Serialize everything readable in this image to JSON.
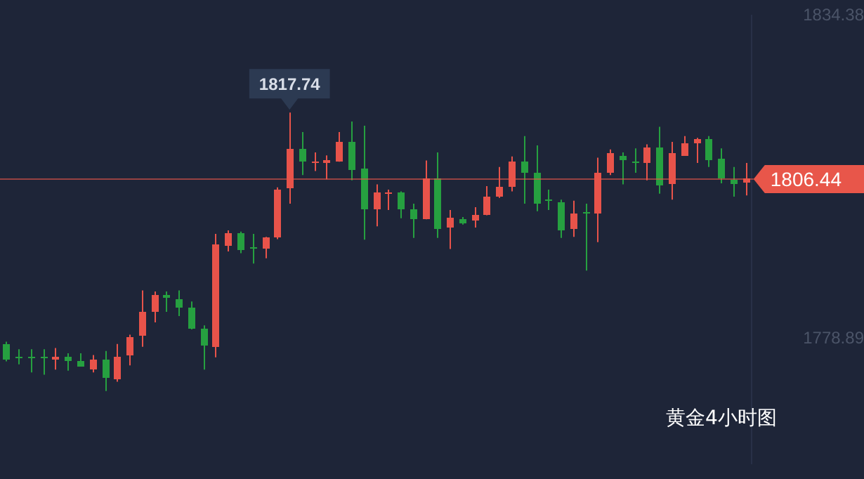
{
  "chart_data": {
    "type": "candlestick",
    "title": "黄金4小时图",
    "categories": [
      null,
      null,
      null,
      null,
      null,
      null,
      null,
      null,
      null,
      null,
      null,
      null,
      null,
      null,
      null,
      null,
      null,
      null,
      null,
      null,
      null,
      null,
      null,
      null,
      null,
      null,
      null,
      null,
      null,
      null,
      null,
      null,
      null,
      null,
      null,
      null,
      null,
      null,
      null,
      null,
      null,
      null,
      null,
      null,
      null,
      null,
      null,
      null,
      null,
      null,
      null,
      null,
      null,
      null,
      null,
      null,
      null,
      null,
      null,
      null,
      null
    ],
    "ohlc": [
      [
        1778.0,
        1778.4,
        1775.0,
        1775.4
      ],
      [
        1775.9,
        1777.1,
        1774.5,
        1775.7
      ],
      [
        1775.7,
        1777.1,
        1773.1,
        1775.6
      ],
      [
        1775.7,
        1777.1,
        1772.7,
        1775.6
      ],
      [
        1775.2,
        1777.3,
        1773.6,
        1775.7
      ],
      [
        1775.7,
        1776.4,
        1773.4,
        1775.0
      ],
      [
        1775.0,
        1776.4,
        1774.1,
        1774.1
      ],
      [
        1773.4,
        1776.1,
        1773.1,
        1775.2
      ],
      [
        1775.2,
        1776.8,
        1769.9,
        1772.0
      ],
      [
        1772.0,
        1778.0,
        1771.5,
        1775.9
      ],
      [
        1775.9,
        1779.6,
        1774.3,
        1779.1
      ],
      [
        1779.4,
        1787.2,
        1777.5,
        1783.5
      ],
      [
        1783.5,
        1787.0,
        1781.7,
        1786.5
      ],
      [
        1786.3,
        1787.0,
        1783.5,
        1785.8
      ],
      [
        1785.8,
        1787.2,
        1782.8,
        1784.4
      ],
      [
        1784.2,
        1785.3,
        1780.5,
        1780.7
      ],
      [
        1780.5,
        1781.2,
        1773.6,
        1777.7
      ],
      [
        1777.5,
        1796.9,
        1775.7,
        1795.0
      ],
      [
        1795.0,
        1797.5,
        1793.9,
        1797.1
      ],
      [
        1797.1,
        1797.3,
        1793.6,
        1794.3
      ],
      [
        1794.6,
        1796.9,
        1791.8,
        1794.5
      ],
      [
        1794.3,
        1796.4,
        1792.7,
        1796.2
      ],
      [
        1796.2,
        1804.9,
        1796.0,
        1804.5
      ],
      [
        1804.7,
        1817.74,
        1802.1,
        1811.4
      ],
      [
        1811.4,
        1814.4,
        1807.0,
        1809.3
      ],
      [
        1809.2,
        1810.9,
        1807.7,
        1809.3
      ],
      [
        1809.1,
        1810.4,
        1806.3,
        1809.5
      ],
      [
        1809.3,
        1814.4,
        1809.3,
        1812.7
      ],
      [
        1812.7,
        1816.2,
        1806.1,
        1807.9
      ],
      [
        1808.1,
        1815.5,
        1795.9,
        1801.2
      ],
      [
        1801.2,
        1805.4,
        1798.2,
        1804.0
      ],
      [
        1803.9,
        1804.5,
        1801.0,
        1804.0
      ],
      [
        1804.0,
        1804.2,
        1799.6,
        1801.2
      ],
      [
        1801.2,
        1802.1,
        1796.2,
        1799.4
      ],
      [
        1799.4,
        1809.5,
        1799.4,
        1806.5
      ],
      [
        1806.5,
        1810.9,
        1796.2,
        1797.8
      ],
      [
        1797.8,
        1801.0,
        1794.3,
        1799.6
      ],
      [
        1799.4,
        1799.8,
        1798.5,
        1798.7
      ],
      [
        1799.2,
        1801.5,
        1798.0,
        1800.1
      ],
      [
        1800.1,
        1805.1,
        1800.1,
        1803.3
      ],
      [
        1803.3,
        1808.4,
        1803.1,
        1805.1
      ],
      [
        1804.9,
        1810.2,
        1804.2,
        1809.3
      ],
      [
        1809.3,
        1813.7,
        1802.1,
        1807.4
      ],
      [
        1807.4,
        1812.1,
        1800.8,
        1802.1
      ],
      [
        1802.7,
        1804.5,
        1801.0,
        1802.6
      ],
      [
        1802.4,
        1802.8,
        1796.2,
        1797.5
      ],
      [
        1797.8,
        1802.6,
        1796.4,
        1800.5
      ],
      [
        1800.6,
        1802.1,
        1790.6,
        1800.5
      ],
      [
        1800.3,
        1810.0,
        1795.5,
        1807.4
      ],
      [
        1807.4,
        1811.4,
        1807.0,
        1810.7
      ],
      [
        1810.2,
        1810.9,
        1805.4,
        1809.5
      ],
      [
        1809.3,
        1811.6,
        1807.4,
        1809.2
      ],
      [
        1809.1,
        1812.3,
        1806.1,
        1811.8
      ],
      [
        1811.8,
        1815.3,
        1803.8,
        1805.4
      ],
      [
        1805.4,
        1812.7,
        1802.8,
        1810.7
      ],
      [
        1810.4,
        1813.7,
        1810.4,
        1812.5
      ],
      [
        1812.5,
        1813.4,
        1809.1,
        1813.2
      ],
      [
        1813.2,
        1813.7,
        1808.4,
        1809.7
      ],
      [
        1809.7,
        1811.6,
        1805.6,
        1806.3
      ],
      [
        1806.3,
        1808.4,
        1803.3,
        1805.6
      ],
      [
        1805.6,
        1809.1,
        1803.5,
        1806.44
      ]
    ],
    "colors": [
      "#26a040",
      "#26a040",
      "#26a040",
      "#26a040",
      "#e8534a",
      "#26a040",
      "#26a040",
      "#e8534a",
      "#26a040",
      "#e8534a",
      "#e8534a",
      "#e8534a",
      "#e8534a",
      "#26a040",
      "#26a040",
      "#26a040",
      "#26a040",
      "#e8534a",
      "#e8534a",
      "#26a040",
      "#26a040",
      "#e8534a",
      "#e8534a",
      "#e8534a",
      "#26a040",
      "#e8534a",
      "#e8534a",
      "#e8534a",
      "#26a040",
      "#26a040",
      "#e8534a",
      "#e8534a",
      "#26a040",
      "#26a040",
      "#e8534a",
      "#26a040",
      "#e8534a",
      "#26a040",
      "#e8534a",
      "#e8534a",
      "#e8534a",
      "#e8534a",
      "#26a040",
      "#26a040",
      "#26a040",
      "#26a040",
      "#e8534a",
      "#26a040",
      "#e8534a",
      "#e8534a",
      "#26a040",
      "#26a040",
      "#e8534a",
      "#26a040",
      "#e8534a",
      "#e8534a",
      "#e8534a",
      "#26a040",
      "#26a040",
      "#26a040",
      "#e8534a"
    ],
    "ylim": [
      1757.5,
      1834.38
    ],
    "yticks": [
      1778.89,
      1834.38
    ],
    "ref_lines": [
      {
        "axis": "y",
        "value": 1806.44,
        "label": "1806.44",
        "color": "#e8564a"
      }
    ],
    "annotations": [
      "1817.74"
    ],
    "tick_labels": "y",
    "grid": false,
    "legend": false
  }
}
